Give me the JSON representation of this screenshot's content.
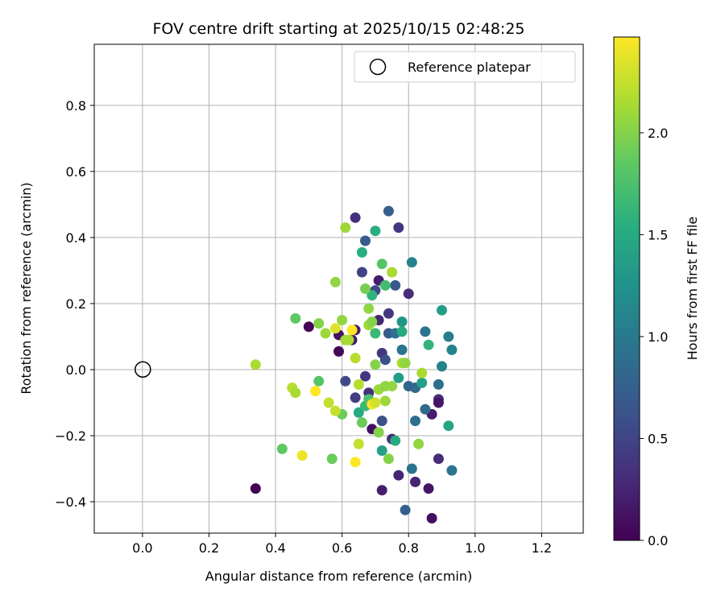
{
  "chart_data": {
    "type": "scatter",
    "title": "FOV centre drift starting at 2025/10/15 02:48:25",
    "xlabel": "Angular distance from reference (arcmin)",
    "ylabel": "Rotation from reference (arcmin)",
    "xlim": [
      -0.145,
      1.325
    ],
    "ylim": [
      -0.495,
      0.985
    ],
    "xticks": [
      0.0,
      0.2,
      0.4,
      0.6,
      0.8,
      1.0,
      1.2
    ],
    "xtick_labels": [
      "0.0",
      "0.2",
      "0.4",
      "0.6",
      "0.8",
      "1.0",
      "1.2"
    ],
    "yticks": [
      -0.4,
      -0.2,
      0.0,
      0.2,
      0.4,
      0.6,
      0.8
    ],
    "ytick_labels": [
      "−0.4",
      "−0.2",
      "0.0",
      "0.2",
      "0.4",
      "0.6",
      "0.8"
    ],
    "grid": true,
    "legend": {
      "position": "upper right",
      "entries": [
        "Reference platepar"
      ]
    },
    "colorbar": {
      "label": "Hours from first FF file",
      "range": [
        0.0,
        2.47
      ],
      "ticks": [
        0.0,
        0.5,
        1.0,
        1.5,
        2.0
      ],
      "tick_labels": [
        "0.0",
        "0.5",
        "1.0",
        "1.5",
        "2.0"
      ],
      "colormap": "viridis"
    },
    "reference_point": {
      "x": 0.0,
      "y": 0.0,
      "label": "Reference platepar"
    },
    "series": [
      {
        "name": "FOV centre",
        "points": [
          [
            0.34,
            -0.36,
            0.0
          ],
          [
            0.5,
            0.13,
            0.02
          ],
          [
            0.59,
            0.055,
            0.05
          ],
          [
            0.59,
            0.105,
            0.12
          ],
          [
            0.63,
            0.09,
            0.18
          ],
          [
            0.64,
            0.12,
            0.22
          ],
          [
            0.64,
            0.46,
            0.35
          ],
          [
            0.67,
            -0.02,
            0.4
          ],
          [
            0.68,
            -0.07,
            0.35
          ],
          [
            0.69,
            -0.18,
            0.1
          ],
          [
            0.71,
            0.15,
            0.25
          ],
          [
            0.71,
            0.27,
            0.2
          ],
          [
            0.72,
            0.05,
            0.4
          ],
          [
            0.74,
            0.17,
            0.4
          ],
          [
            0.75,
            -0.21,
            0.3
          ],
          [
            0.77,
            -0.32,
            0.25
          ],
          [
            0.72,
            -0.365,
            0.2
          ],
          [
            0.8,
            0.23,
            0.3
          ],
          [
            0.82,
            -0.34,
            0.25
          ],
          [
            0.86,
            -0.36,
            0.15
          ],
          [
            0.87,
            -0.45,
            0.1
          ],
          [
            0.87,
            -0.135,
            0.2
          ],
          [
            0.89,
            -0.09,
            0.3
          ],
          [
            0.89,
            -0.1,
            0.15
          ],
          [
            0.89,
            -0.27,
            0.3
          ],
          [
            0.77,
            0.43,
            0.4
          ],
          [
            0.61,
            -0.035,
            0.55
          ],
          [
            0.64,
            -0.085,
            0.45
          ],
          [
            0.66,
            0.295,
            0.5
          ],
          [
            0.67,
            0.39,
            0.7
          ],
          [
            0.7,
            0.24,
            0.55
          ],
          [
            0.72,
            -0.155,
            0.6
          ],
          [
            0.73,
            0.03,
            0.6
          ],
          [
            0.74,
            0.11,
            0.7
          ],
          [
            0.74,
            0.48,
            0.75
          ],
          [
            0.76,
            0.255,
            0.7
          ],
          [
            0.76,
            0.11,
            0.9
          ],
          [
            0.78,
            0.06,
            0.95
          ],
          [
            0.79,
            -0.425,
            0.75
          ],
          [
            0.8,
            -0.05,
            0.8
          ],
          [
            0.81,
            -0.3,
            0.95
          ],
          [
            0.81,
            0.325,
            1.1
          ],
          [
            0.82,
            -0.155,
            0.9
          ],
          [
            0.82,
            -0.055,
            0.85
          ],
          [
            0.85,
            0.115,
            0.95
          ],
          [
            0.85,
            -0.12,
            0.85
          ],
          [
            0.89,
            -0.045,
            0.9
          ],
          [
            0.9,
            0.01,
            1.1
          ],
          [
            0.92,
            0.1,
            1.05
          ],
          [
            0.93,
            0.06,
            1.1
          ],
          [
            0.93,
            -0.305,
            0.95
          ],
          [
            0.9,
            0.18,
            1.35
          ],
          [
            0.92,
            -0.17,
            1.45
          ],
          [
            0.86,
            0.075,
            1.6
          ],
          [
            0.84,
            -0.04,
            1.4
          ],
          [
            0.78,
            0.145,
            1.3
          ],
          [
            0.78,
            0.115,
            1.5
          ],
          [
            0.76,
            -0.215,
            1.5
          ],
          [
            0.77,
            -0.025,
            1.35
          ],
          [
            0.72,
            -0.245,
            1.4
          ],
          [
            0.7,
            0.42,
            1.55
          ],
          [
            0.66,
            0.355,
            1.55
          ],
          [
            0.69,
            0.225,
            1.6
          ],
          [
            0.7,
            0.11,
            1.65
          ],
          [
            0.72,
            0.32,
            1.8
          ],
          [
            0.73,
            0.255,
            1.7
          ],
          [
            0.65,
            -0.13,
            1.5
          ],
          [
            0.67,
            -0.11,
            1.65
          ],
          [
            0.68,
            -0.09,
            1.75
          ],
          [
            0.66,
            -0.16,
            1.9
          ],
          [
            0.6,
            -0.135,
            1.9
          ],
          [
            0.53,
            -0.035,
            1.8
          ],
          [
            0.46,
            0.155,
            1.85
          ],
          [
            0.42,
            -0.24,
            1.85
          ],
          [
            0.57,
            -0.27,
            1.9
          ],
          [
            0.58,
            0.265,
            2.05
          ],
          [
            0.61,
            0.43,
            2.1
          ],
          [
            0.6,
            0.15,
            2.05
          ],
          [
            0.61,
            0.09,
            2.1
          ],
          [
            0.55,
            0.11,
            2.1
          ],
          [
            0.53,
            0.14,
            2.0
          ],
          [
            0.67,
            0.245,
            1.95
          ],
          [
            0.68,
            0.185,
            2.05
          ],
          [
            0.68,
            0.135,
            2.1
          ],
          [
            0.69,
            0.145,
            2.0
          ],
          [
            0.7,
            0.015,
            2.0
          ],
          [
            0.71,
            -0.19,
            2.0
          ],
          [
            0.71,
            -0.06,
            2.1
          ],
          [
            0.73,
            -0.05,
            2.05
          ],
          [
            0.73,
            -0.095,
            2.1
          ],
          [
            0.74,
            -0.27,
            2.0
          ],
          [
            0.75,
            0.295,
            2.15
          ],
          [
            0.75,
            -0.05,
            2.05
          ],
          [
            0.78,
            0.02,
            2.15
          ],
          [
            0.79,
            0.02,
            2.05
          ],
          [
            0.83,
            -0.225,
            2.05
          ],
          [
            0.84,
            -0.01,
            2.15
          ],
          [
            0.45,
            -0.055,
            2.2
          ],
          [
            0.46,
            -0.07,
            2.15
          ],
          [
            0.34,
            0.015,
            2.15
          ],
          [
            0.56,
            -0.1,
            2.25
          ],
          [
            0.58,
            -0.125,
            2.25
          ],
          [
            0.62,
            0.09,
            2.15
          ],
          [
            0.64,
            0.035,
            2.2
          ],
          [
            0.65,
            -0.045,
            2.2
          ],
          [
            0.65,
            -0.225,
            2.25
          ],
          [
            0.64,
            -0.28,
            2.47
          ],
          [
            0.48,
            -0.26,
            2.4
          ],
          [
            0.52,
            -0.065,
            2.47
          ],
          [
            0.58,
            0.125,
            2.35
          ],
          [
            0.63,
            0.12,
            2.47
          ],
          [
            0.69,
            -0.105,
            2.45
          ],
          [
            0.7,
            -0.1,
            2.3
          ]
        ]
      }
    ]
  }
}
